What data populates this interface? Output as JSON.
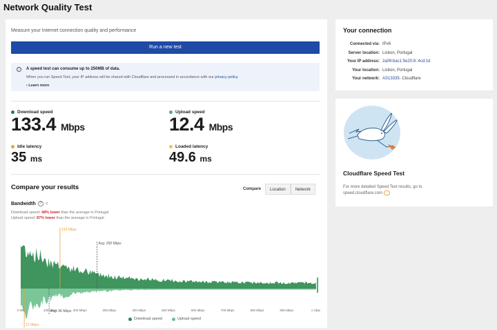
{
  "page_title": "Network Quality Test",
  "main": {
    "subtitle": "Measure your Internet connection quality and performance",
    "run_button": "Run a new test",
    "info": {
      "icon": "lightbulb-icon",
      "title": "A speed test can consume up to 250MB of data.",
      "text_before": "When you run Speed Test, your IP address will be shared with Cloudflare and processed in accordance with our ",
      "link": "privacy policy",
      "text_after": ".",
      "learn_more": "Learn more"
    },
    "metrics": {
      "download": {
        "label": "Download speed",
        "value": "133.4",
        "unit": "Mbps",
        "color": "#1e7f43"
      },
      "upload": {
        "label": "Upload speed",
        "value": "12.4",
        "unit": "Mbps",
        "color": "#49b083"
      },
      "idle": {
        "label": "Idle latency",
        "value": "35",
        "unit": "ms",
        "color": "#e8a33b"
      },
      "loaded": {
        "label": "Loaded latency",
        "value": "49.6",
        "unit": "ms",
        "color": "#f2c04c"
      }
    },
    "compare": {
      "title": "Compare your results",
      "tabs": [
        "Compare",
        "Location",
        "Network"
      ],
      "bandwidth_title": "Bandwidth",
      "download_line": {
        "prefix": "Download speed: ",
        "highlight": "48% lower",
        "suffix": " than the average in Portugal"
      },
      "upload_line": {
        "prefix": "Upload speed: ",
        "highlight": "87% lower",
        "suffix": " than the average in Portugal"
      }
    }
  },
  "chart_data": {
    "type": "area",
    "series": [
      {
        "name": "Download speed",
        "color": "#2a8a4b"
      },
      {
        "name": "Upload speed",
        "color": "#6cc08e"
      }
    ],
    "x_ticks": [
      "0 Mb",
      "100 Mbps",
      "200 Mbps",
      "300 Mbps",
      "400 Mbps",
      "500 Mbps",
      "600 Mbps",
      "700 Mbps",
      "800 Mbps",
      "900 Mbps",
      "1 Gbps"
    ],
    "xlim": [
      0,
      1000
    ],
    "markers": [
      {
        "label": "133 Mbps",
        "x": 133,
        "color": "#e8a33b"
      },
      {
        "label": "Avg: 258 Mbps",
        "x": 258,
        "color": "#555555"
      },
      {
        "label": "12 Mbps",
        "x": 12,
        "color": "#e8a33b"
      },
      {
        "label": "Avg: 96 Mbps",
        "x": 96,
        "color": "#555555"
      }
    ]
  },
  "connection": {
    "title": "Your connection",
    "rows": [
      {
        "key": "Connected via:",
        "value": "IPv6",
        "link": false
      },
      {
        "key": "Server location:",
        "value": "Lisbon, Portugal",
        "link": false
      },
      {
        "key": "Your IP address:",
        "value": "2a09:bac1:5e20:8::4cd:1d",
        "link": true
      },
      {
        "key": "Your location:",
        "value": "Lisbon, Portugal",
        "link": false
      },
      {
        "key": "Your network:",
        "value": "AS13335",
        "suffix": " - Cloudflare",
        "link": true
      }
    ]
  },
  "cloudflare": {
    "image": "rabbit-illustration",
    "title": "Cloudflare Speed Test",
    "text": "For more detailed Speed Test results, go to",
    "link": "speed.cloudflare.com"
  }
}
